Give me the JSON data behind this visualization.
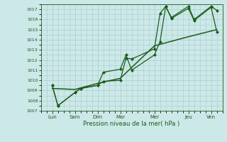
{
  "xlabel": "Pression niveau de la mer( hPa )",
  "background_color": "#cce8e8",
  "grid_color": "#aacccc",
  "line_color": "#1a5c1a",
  "ylim": [
    1007,
    1017.5
  ],
  "xlim": [
    0,
    16
  ],
  "yticks": [
    1007,
    1008,
    1009,
    1010,
    1011,
    1012,
    1013,
    1014,
    1015,
    1016,
    1017
  ],
  "day_labels": [
    "Lun",
    "Sam",
    "Dim",
    "Mar",
    "Mer",
    "Jeu",
    "Ven"
  ],
  "day_positions": [
    1,
    3,
    5,
    7,
    10,
    13,
    15
  ],
  "series1_x": [
    1,
    1.5,
    3,
    3.5,
    5,
    5.5,
    7,
    7.5,
    8,
    10,
    10.5,
    11,
    11.5,
    13,
    13.5,
    15,
    15.5
  ],
  "series1_y": [
    1009.5,
    1007.5,
    1008.8,
    1009.2,
    1009.5,
    1009.9,
    1010.0,
    1012.2,
    1012.1,
    1013.1,
    1016.6,
    1017.3,
    1016.1,
    1017.1,
    1015.9,
    1017.2,
    1014.8
  ],
  "series2_x": [
    1,
    1.5,
    3,
    3.5,
    5,
    5.5,
    7,
    7.5,
    8,
    10,
    10.5,
    11,
    11.5,
    13,
    13.5,
    15,
    15.5
  ],
  "series2_y": [
    1009.5,
    1007.5,
    1008.8,
    1009.2,
    1009.5,
    1010.8,
    1011.1,
    1012.5,
    1011.0,
    1012.5,
    1013.8,
    1017.3,
    1016.2,
    1017.3,
    1016.0,
    1017.3,
    1016.9
  ],
  "series3_x": [
    1,
    3,
    5,
    7,
    10,
    13,
    15.5
  ],
  "series3_y": [
    1009.2,
    1009.1,
    1009.7,
    1010.2,
    1013.4,
    1014.3,
    1015.0
  ],
  "figsize": [
    3.2,
    2.0
  ],
  "dpi": 100
}
